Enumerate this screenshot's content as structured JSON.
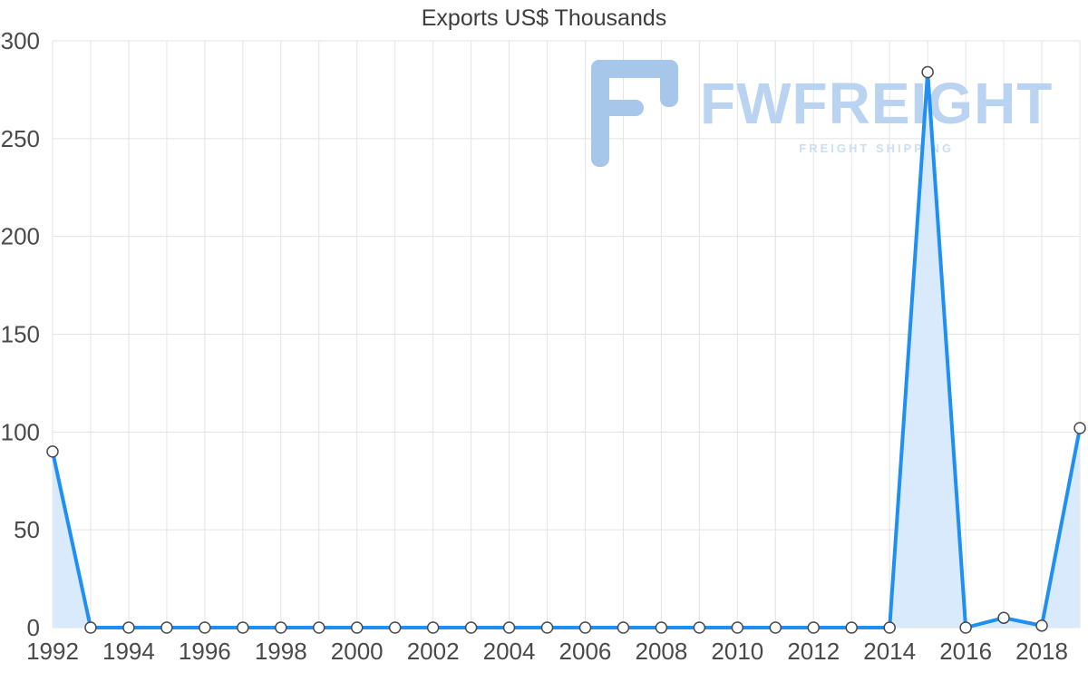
{
  "watermark": {
    "brand": "FWFREIGHT",
    "tagline": "FREIGHT SHIPPING"
  },
  "chart_data": {
    "type": "area",
    "title": "Exports US$ Thousands",
    "series_name": "Exports US$ Thousands",
    "x": [
      1992,
      1993,
      1994,
      1995,
      1996,
      1997,
      1998,
      1999,
      2000,
      2001,
      2002,
      2003,
      2004,
      2005,
      2006,
      2007,
      2008,
      2009,
      2010,
      2011,
      2012,
      2013,
      2014,
      2015,
      2016,
      2017,
      2018,
      2019
    ],
    "values": [
      90,
      0,
      0,
      0,
      0,
      0,
      0,
      0,
      0,
      0,
      0,
      0,
      0,
      0,
      0,
      0,
      0,
      0,
      0,
      0,
      0,
      0,
      0,
      284,
      0,
      5,
      1,
      102
    ],
    "xticks": [
      1992,
      1994,
      1996,
      1998,
      2000,
      2002,
      2004,
      2006,
      2008,
      2010,
      2012,
      2014,
      2016,
      2018
    ],
    "yticks": [
      0,
      50,
      100,
      150,
      200,
      250,
      300
    ],
    "ylim": [
      0,
      300
    ],
    "grid": true,
    "legend": false,
    "colors": {
      "line": "#1f8ff3",
      "area": "#d9eafc",
      "marker_fill": "#ffffff",
      "marker_stroke": "#4a4a4a",
      "grid": "#e3e3e3",
      "label": "#4a4a4a",
      "title": "#3d3d3d",
      "watermark_brand": "#b9d3f1",
      "watermark_logo": "#a6c6ea",
      "watermark_tagline": "#cbdef5"
    }
  }
}
